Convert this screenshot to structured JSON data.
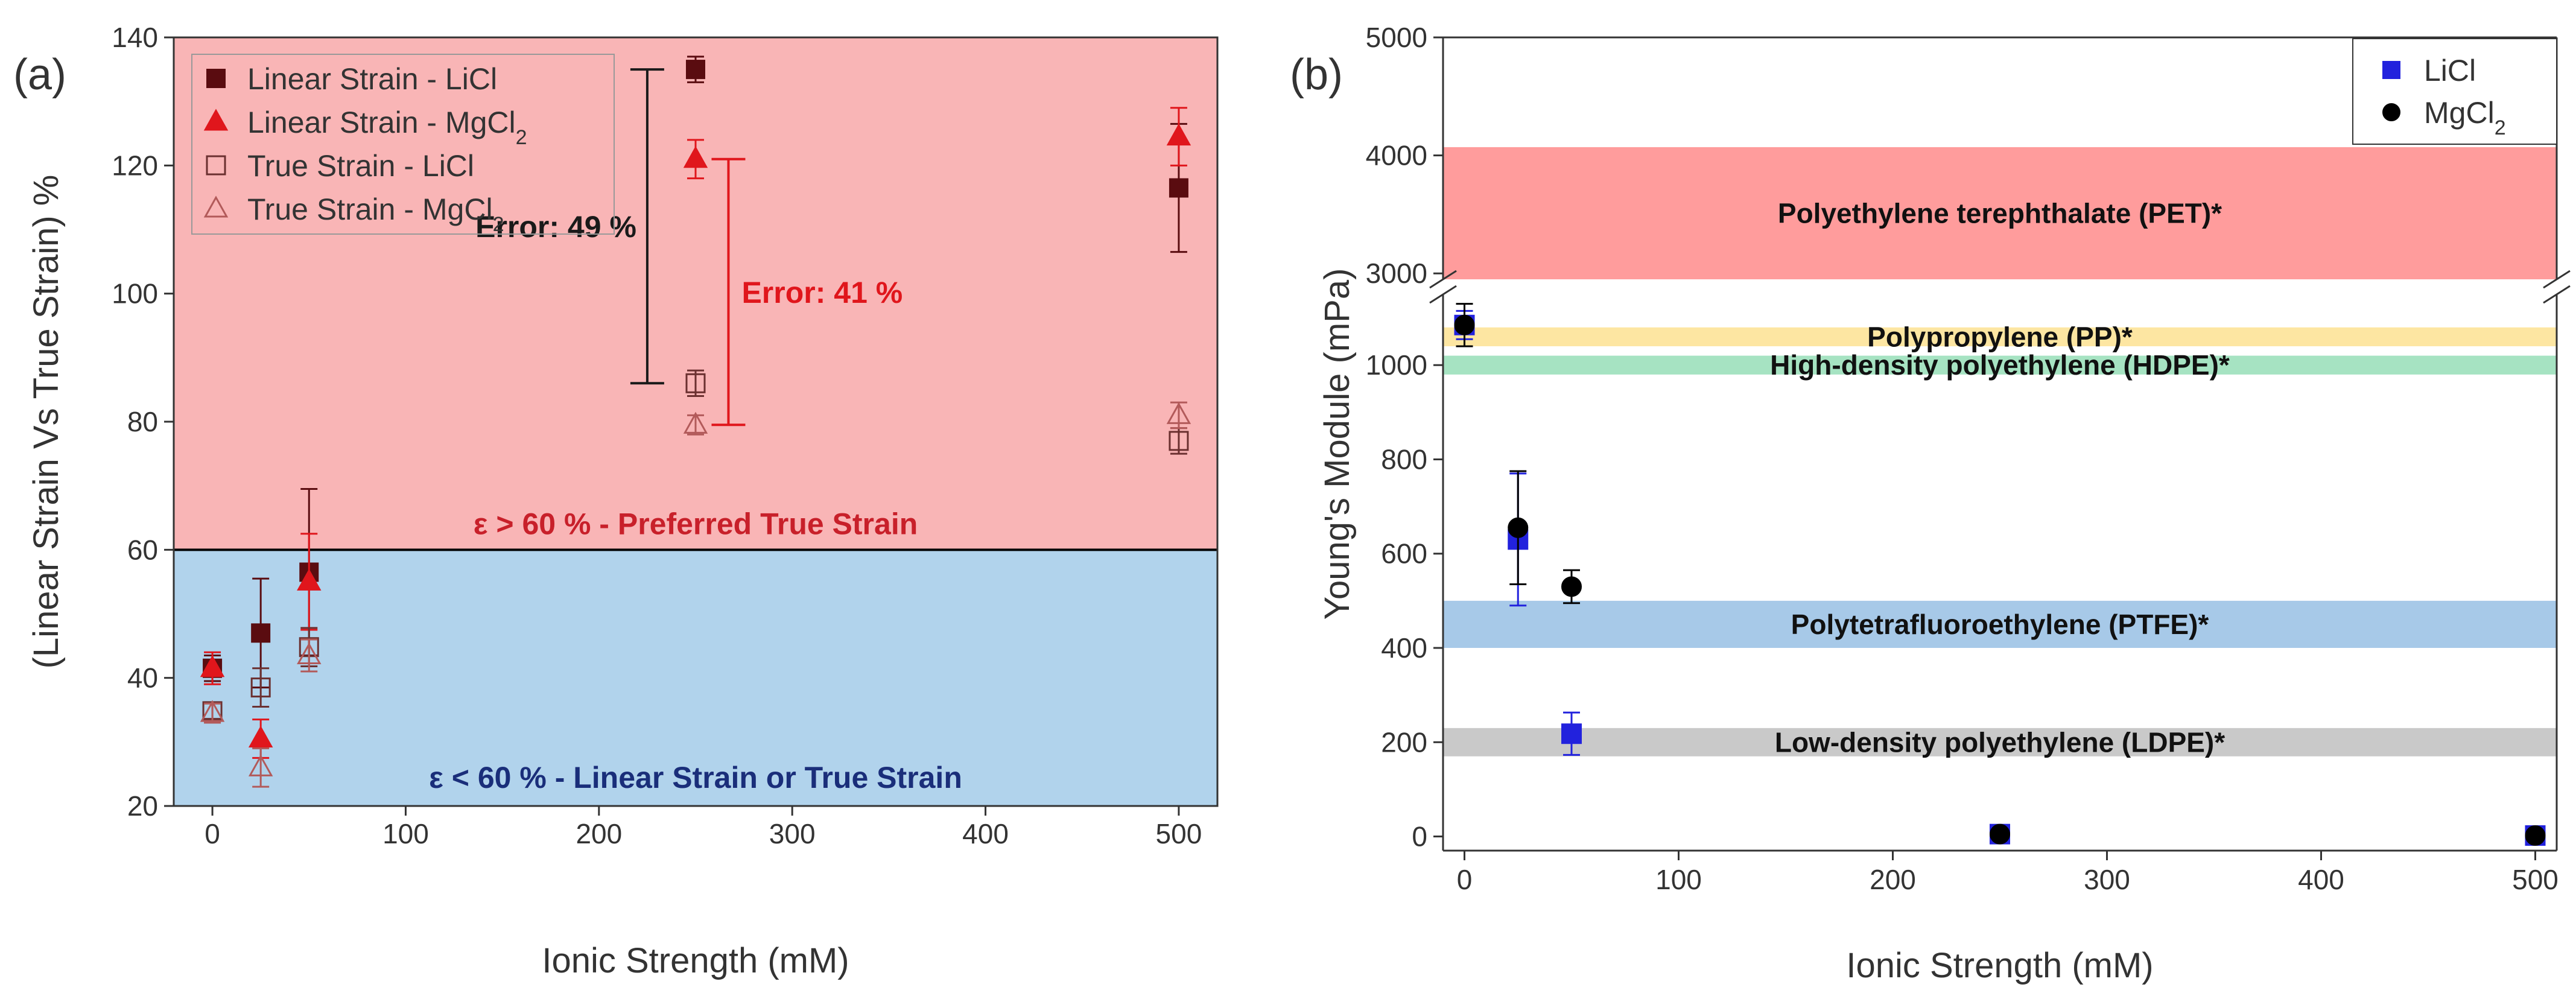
{
  "chart_data": [
    {
      "panel": "(a)",
      "type": "scatter",
      "xlabel": "Ionic Strength (mM)",
      "ylabel": "(Linear Strain Vs True Strain) %",
      "xlim": [
        -20,
        520
      ],
      "ylim": [
        20,
        140
      ],
      "xticks": [
        0,
        100,
        200,
        300,
        400,
        500
      ],
      "yticks": [
        20,
        40,
        60,
        80,
        100,
        120,
        140
      ],
      "threshold": 60,
      "colors": {
        "upper_region": "#f9b5b6",
        "lower_region": "#b1d3ec",
        "threshold_line": "#000000"
      },
      "regions": [
        {
          "label": "ε > 60 % - Preferred True Strain",
          "color": "#c8202a"
        },
        {
          "label": "ε < 60 % - Linear Strain or True Strain",
          "color": "#1a2e7a"
        }
      ],
      "series": [
        {
          "name": "Linear Strain - LiCl",
          "legend_main": "Linear Strain - LiCl",
          "legend_sub": "",
          "marker": "square-filled",
          "color": "#5a0c10",
          "x": [
            0,
            25,
            50,
            250,
            500
          ],
          "y": [
            41.5,
            47,
            56.5,
            135,
            116.5
          ],
          "err": [
            2,
            8.5,
            13,
            2,
            10
          ]
        },
        {
          "name": "Linear Strain - MgCl2",
          "legend_main": "Linear Strain - MgCl",
          "legend_sub": "2",
          "marker": "triangle-filled",
          "color": "#e0161c",
          "x": [
            0,
            25,
            50,
            250,
            500
          ],
          "y": [
            41.5,
            30.5,
            55,
            121,
            124.5
          ],
          "err": [
            2.5,
            3,
            7.5,
            3,
            4.5
          ]
        },
        {
          "name": "True Strain - LiCl",
          "legend_main": "True Strain - LiCl",
          "legend_sub": "",
          "marker": "square-open",
          "color": "#6b3030",
          "x": [
            0,
            25,
            50,
            250,
            500
          ],
          "y": [
            34.8,
            38.5,
            44.8,
            86,
            77
          ],
          "err": [
            1.2,
            3,
            3,
            2,
            2
          ]
        },
        {
          "name": "True Strain - MgCl2",
          "legend_main": "True Strain - MgCl",
          "legend_sub": "2",
          "marker": "triangle-open",
          "color": "#b25a5a",
          "x": [
            0,
            25,
            50,
            250,
            500
          ],
          "y": [
            34.5,
            26,
            43.5,
            79.5,
            81
          ],
          "err": [
            1.5,
            3,
            2.5,
            1.5,
            2
          ]
        }
      ],
      "annotations": [
        {
          "text": "Error: 49 %",
          "x": 225,
          "y_low": 86,
          "y_high": 135,
          "color": "#1a1a1a"
        },
        {
          "text": "Error: 41 %",
          "x": 267,
          "y_low": 79.5,
          "y_high": 121,
          "color": "#e0161c"
        }
      ]
    },
    {
      "panel": "(b)",
      "type": "scatter",
      "xlabel": "Ionic Strength (mM)",
      "ylabel": "Young's Module (mPa)",
      "xlim": [
        -10,
        510
      ],
      "ylim_lower": [
        -30,
        1150
      ],
      "ylim_upper": [
        2950,
        5000
      ],
      "xticks": [
        0,
        100,
        200,
        300,
        400,
        500
      ],
      "yticks_lower": [
        0,
        200,
        400,
        600,
        800,
        1000
      ],
      "yticks_upper": [
        3000,
        4000,
        5000
      ],
      "broken_axis": true,
      "bands": [
        {
          "label": "Polyethylene terephthalate (PET)*",
          "y0": 2950,
          "y1": 4070,
          "segment": "upper",
          "color": "#ff9c9c"
        },
        {
          "label": "Polypropylene (PP)*",
          "y0": 1040,
          "y1": 1080,
          "segment": "lower",
          "color": "#fde6a2"
        },
        {
          "label": "High-density polyethylene (HDPE)*",
          "y0": 980,
          "y1": 1020,
          "segment": "lower",
          "color": "#a6e3c2"
        },
        {
          "label": "Polytetrafluoroethylene (PTFE)*",
          "y0": 400,
          "y1": 500,
          "segment": "lower",
          "color": "#a7c9e8"
        },
        {
          "label": "Low-density polyethylene (LDPE)*",
          "y0": 170,
          "y1": 230,
          "segment": "lower",
          "color": "#c9c9c9"
        }
      ],
      "series": [
        {
          "name": "LiCl",
          "legend_main": "LiCl",
          "legend_sub": "",
          "marker": "square-filled",
          "color": "#2222dd",
          "x": [
            0,
            25,
            50,
            250,
            500
          ],
          "y": [
            1085,
            630,
            218,
            5,
            2
          ],
          "err": [
            30,
            140,
            45,
            5,
            5
          ]
        },
        {
          "name": "MgCl2",
          "legend_main": "MgCl",
          "legend_sub": "2",
          "marker": "circle-filled",
          "color": "#000000",
          "x": [
            0,
            25,
            50,
            250,
            500
          ],
          "y": [
            1085,
            655,
            530,
            5,
            2
          ],
          "err": [
            45,
            120,
            35,
            8,
            8
          ]
        }
      ]
    }
  ]
}
